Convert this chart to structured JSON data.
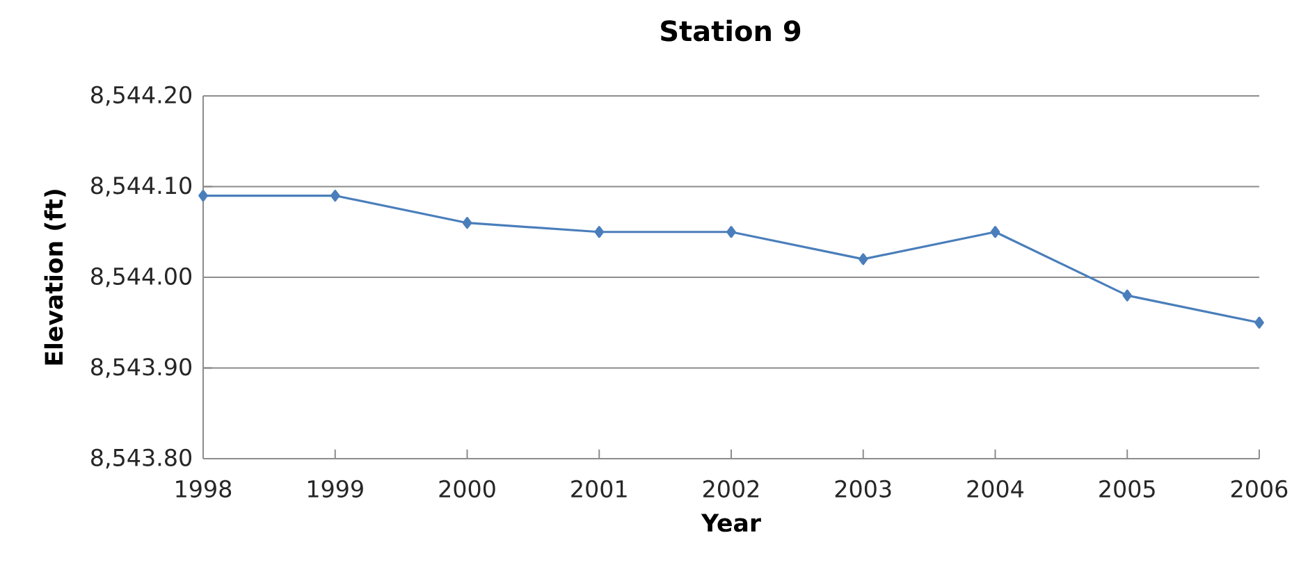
{
  "chart_data": {
    "type": "line",
    "title": "Station 9",
    "xlabel": "Year",
    "ylabel": "Elevation (ft)",
    "x": [
      1998,
      1999,
      2000,
      2001,
      2002,
      2003,
      2004,
      2005,
      2006
    ],
    "series": [
      {
        "color": "#4a7ebb",
        "values": [
          8544.09,
          8544.09,
          8544.06,
          8544.05,
          8544.05,
          8544.02,
          8544.05,
          8543.98,
          8543.95
        ]
      }
    ],
    "xlim": [
      1998,
      2006
    ],
    "xticks": [
      1998,
      1999,
      2000,
      2001,
      2002,
      2003,
      2004,
      2005,
      2006
    ],
    "ylim": [
      8543.8,
      8544.2
    ],
    "yticks": [
      {
        "value": 8543.8,
        "label": "8,543.80"
      },
      {
        "value": 8543.9,
        "label": "8,543.90"
      },
      {
        "value": 8544.0,
        "label": "8,544.00"
      },
      {
        "value": 8544.1,
        "label": "8,544.10"
      },
      {
        "value": 8544.2,
        "label": "8,544.20"
      }
    ],
    "grid": "y",
    "marker": "diamond",
    "line_style": "solid"
  }
}
